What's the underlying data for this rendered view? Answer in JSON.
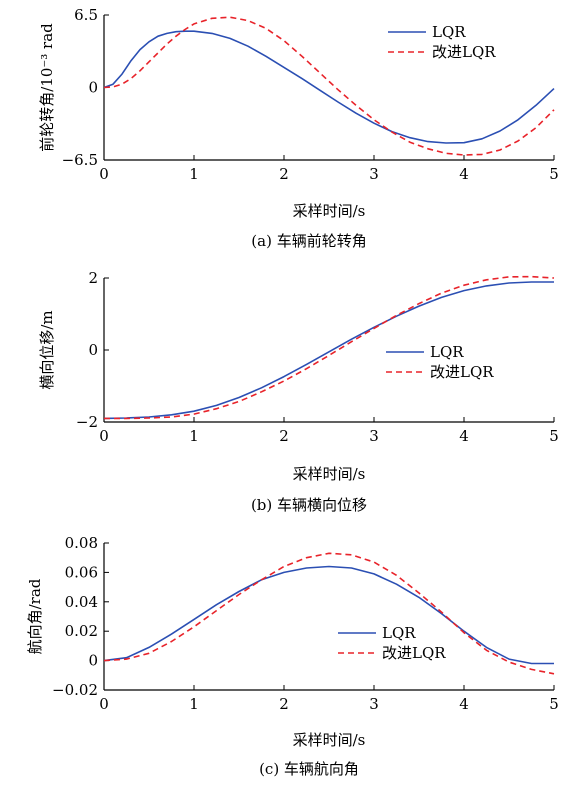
{
  "chart_data": [
    {
      "type": "line",
      "caption": "(a)   车辆前轮转角",
      "xlabel": "采样时间/s",
      "ylabel": "前轮转角/10⁻³ rad",
      "xlim": [
        0,
        5
      ],
      "ylim": [
        -6.5,
        6.5
      ],
      "xticks": [
        "0",
        "1",
        "2",
        "3",
        "4",
        "5"
      ],
      "yticks": [
        "6.5",
        "0",
        "−6.5"
      ],
      "ytick_values": [
        6.5,
        0,
        -6.5
      ],
      "legend": [
        "LQR",
        "改进LQR"
      ],
      "legend_position": "top-right",
      "series": [
        {
          "name": "LQR",
          "color": "#2b4fb3",
          "style": "solid",
          "x": [
            0,
            0.1,
            0.2,
            0.3,
            0.4,
            0.5,
            0.6,
            0.7,
            0.8,
            0.9,
            1.0,
            1.2,
            1.4,
            1.6,
            1.8,
            2.0,
            2.2,
            2.4,
            2.6,
            2.8,
            3.0,
            3.2,
            3.4,
            3.6,
            3.8,
            4.0,
            4.2,
            4.4,
            4.6,
            4.8,
            5.0
          ],
          "y": [
            0,
            0.3,
            1.2,
            2.4,
            3.4,
            4.1,
            4.6,
            4.85,
            5.0,
            5.05,
            5.05,
            4.85,
            4.4,
            3.7,
            2.8,
            1.8,
            0.8,
            -0.25,
            -1.3,
            -2.3,
            -3.2,
            -3.95,
            -4.5,
            -4.85,
            -4.98,
            -4.95,
            -4.6,
            -3.9,
            -2.9,
            -1.6,
            -0.1
          ]
        },
        {
          "name": "改进LQR",
          "color": "#e8232a",
          "style": "dashed",
          "x": [
            0,
            0.1,
            0.2,
            0.3,
            0.4,
            0.5,
            0.6,
            0.7,
            0.8,
            0.9,
            1.0,
            1.2,
            1.4,
            1.6,
            1.8,
            2.0,
            2.2,
            2.4,
            2.6,
            2.8,
            3.0,
            3.2,
            3.4,
            3.6,
            3.8,
            4.0,
            4.2,
            4.4,
            4.6,
            4.8,
            5.0
          ],
          "y": [
            0,
            0.05,
            0.3,
            0.8,
            1.5,
            2.3,
            3.1,
            3.9,
            4.6,
            5.2,
            5.7,
            6.2,
            6.3,
            6.0,
            5.3,
            4.2,
            2.8,
            1.3,
            -0.2,
            -1.6,
            -2.9,
            -4.0,
            -4.9,
            -5.5,
            -5.9,
            -6.05,
            -6.0,
            -5.6,
            -4.8,
            -3.6,
            -2.0
          ]
        }
      ]
    },
    {
      "type": "line",
      "caption": "(b)   车辆横向位移",
      "xlabel": "采样时间/s",
      "ylabel": "横向位移/m",
      "xlim": [
        0,
        5
      ],
      "ylim": [
        -2,
        2
      ],
      "xticks": [
        "0",
        "1",
        "2",
        "3",
        "4",
        "5"
      ],
      "yticks": [
        "2",
        "0",
        "−2"
      ],
      "ytick_values": [
        2,
        0,
        -2
      ],
      "legend": [
        "LQR",
        "改进LQR"
      ],
      "legend_position": "center-right",
      "series": [
        {
          "name": "LQR",
          "color": "#2b4fb3",
          "style": "solid",
          "x": [
            0,
            0.25,
            0.5,
            0.75,
            1.0,
            1.25,
            1.5,
            1.75,
            2.0,
            2.25,
            2.5,
            2.75,
            3.0,
            3.25,
            3.5,
            3.75,
            4.0,
            4.25,
            4.5,
            4.75,
            5.0
          ],
          "y": [
            -1.9,
            -1.89,
            -1.86,
            -1.8,
            -1.7,
            -1.54,
            -1.32,
            -1.05,
            -0.74,
            -0.4,
            -0.05,
            0.3,
            0.63,
            0.94,
            1.22,
            1.46,
            1.65,
            1.78,
            1.86,
            1.89,
            1.89
          ]
        },
        {
          "name": "改进LQR",
          "color": "#e8232a",
          "style": "dashed",
          "x": [
            0,
            0.25,
            0.5,
            0.75,
            1.0,
            1.25,
            1.5,
            1.75,
            2.0,
            2.25,
            2.5,
            2.75,
            3.0,
            3.25,
            3.5,
            3.75,
            4.0,
            4.25,
            4.5,
            4.75,
            5.0
          ],
          "y": [
            -1.9,
            -1.9,
            -1.89,
            -1.86,
            -1.78,
            -1.63,
            -1.43,
            -1.16,
            -0.86,
            -0.52,
            -0.15,
            0.23,
            0.6,
            0.96,
            1.29,
            1.58,
            1.8,
            1.95,
            2.03,
            2.04,
            2.0
          ]
        }
      ]
    },
    {
      "type": "line",
      "caption": "(c)   车辆航向角",
      "xlabel": "采样时间/s",
      "ylabel": "航向角/rad",
      "xlim": [
        0,
        5
      ],
      "ylim": [
        -0.02,
        0.08
      ],
      "xticks": [
        "0",
        "1",
        "2",
        "3",
        "4",
        "5"
      ],
      "yticks": [
        "0.08",
        "0.06",
        "0.04",
        "0.02",
        "0",
        "−0.02"
      ],
      "ytick_values": [
        0.08,
        0.06,
        0.04,
        0.02,
        0,
        -0.02
      ],
      "legend": [
        "LQR",
        "改进LQR"
      ],
      "legend_position": "center-right",
      "series": [
        {
          "name": "LQR",
          "color": "#2b4fb3",
          "style": "solid",
          "x": [
            0,
            0.25,
            0.5,
            0.75,
            1.0,
            1.25,
            1.5,
            1.75,
            2.0,
            2.25,
            2.5,
            2.75,
            3.0,
            3.25,
            3.5,
            3.75,
            4.0,
            4.25,
            4.5,
            4.75,
            5.0
          ],
          "y": [
            0.0,
            0.002,
            0.009,
            0.018,
            0.028,
            0.038,
            0.047,
            0.055,
            0.06,
            0.063,
            0.064,
            0.063,
            0.059,
            0.052,
            0.043,
            0.032,
            0.02,
            0.009,
            0.001,
            -0.002,
            -0.002
          ]
        },
        {
          "name": "改进LQR",
          "color": "#e8232a",
          "style": "dashed",
          "x": [
            0,
            0.25,
            0.5,
            0.75,
            1.0,
            1.25,
            1.5,
            1.75,
            2.0,
            2.25,
            2.5,
            2.75,
            3.0,
            3.25,
            3.5,
            3.75,
            4.0,
            4.25,
            4.5,
            4.75,
            5.0
          ],
          "y": [
            0.0,
            0.001,
            0.005,
            0.013,
            0.023,
            0.034,
            0.045,
            0.055,
            0.064,
            0.07,
            0.073,
            0.072,
            0.067,
            0.058,
            0.046,
            0.033,
            0.019,
            0.007,
            -0.001,
            -0.006,
            -0.009
          ]
        }
      ]
    }
  ]
}
